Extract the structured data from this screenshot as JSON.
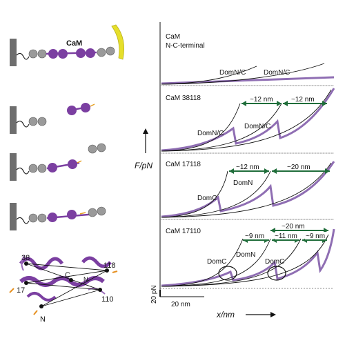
{
  "colors": {
    "calmodulin": "#7b3fa1",
    "calmodulin_light": "#b088cc",
    "trace": "#6a3d9a",
    "spacer_bead": "#9a9a9a",
    "surface": "#6e6e6e",
    "cantilever": "#e6df2a",
    "fit": "#111111",
    "arrow": "#1f6d3a"
  },
  "schematic": {
    "cam_label": "CaM"
  },
  "structure": {
    "labels": {
      "r38": "38",
      "r17": "17",
      "r118": "118",
      "r110": "110",
      "c_term": "C",
      "n_term": "N",
      "n_domain": "N"
    }
  },
  "axes": {
    "y_label": "F/pN",
    "x_label": "x/nm",
    "y_scale_bar": "20 pN",
    "x_scale_bar": "20 nm"
  },
  "panels": [
    {
      "title_line1": "CaM",
      "title_line2": "N-C-terminal",
      "peak_labels": [
        "DomN/C",
        "DomN/C"
      ],
      "distances": []
    },
    {
      "title_line1": "CaM 38118",
      "peak_labels": [
        "DomN/C",
        "DomN/C"
      ],
      "distances": [
        "~12 nm",
        "~12 nm"
      ]
    },
    {
      "title_line1": "CaM 17118",
      "peak_labels": [
        "DomC",
        "DomN"
      ],
      "distances": [
        "~12 nm",
        "~20 nm"
      ]
    },
    {
      "title_line1": "CaM 17110",
      "peak_labels": [
        "DomC",
        "DomN",
        "DomC"
      ],
      "distances": [
        "~20 nm",
        "~9 nm",
        "~11 nm",
        "~9 nm"
      ]
    }
  ]
}
